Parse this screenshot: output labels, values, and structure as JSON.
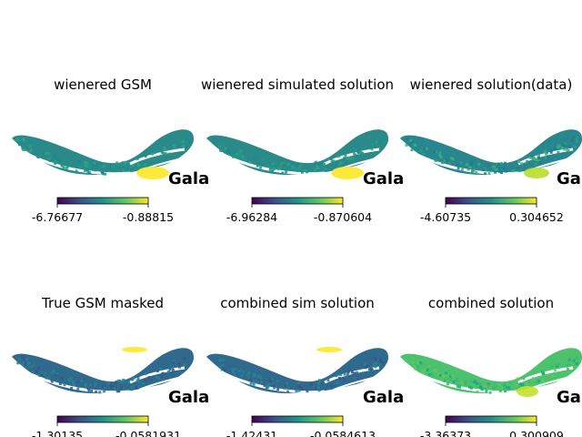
{
  "chart_data": [
    {
      "type": "heatmap",
      "title": "wienered GSM",
      "colorbar": {
        "min": "-6.76677",
        "max": "-0.88815"
      },
      "overlay_label": "Gala",
      "palette": "viridis",
      "pattern": "bright-south"
    },
    {
      "type": "heatmap",
      "title": "wienered simulated solution",
      "colorbar": {
        "min": "-6.96284",
        "max": "-0.870604"
      },
      "overlay_label": "Gala",
      "palette": "viridis",
      "pattern": "bright-south"
    },
    {
      "type": "heatmap",
      "title": "wienered solution(data)",
      "colorbar": {
        "min": "-4.60735",
        "max": "0.304652"
      },
      "overlay_label": "Gala",
      "palette": "viridis",
      "pattern": "noisy-mid"
    },
    {
      "type": "heatmap",
      "title": "True GSM masked",
      "colorbar": {
        "min": "-1.30135",
        "max": "-0.0581931"
      },
      "overlay_label": "Gala",
      "palette": "viridis",
      "pattern": "dark-plane"
    },
    {
      "type": "heatmap",
      "title": "combined sim solution",
      "colorbar": {
        "min": "-1.42431",
        "max": "-0.0584613"
      },
      "overlay_label": "Gala",
      "palette": "viridis",
      "pattern": "dark-plane"
    },
    {
      "type": "heatmap",
      "title": "combined solution",
      "colorbar": {
        "min": "-3.36373",
        "max": "0.300909"
      },
      "overlay_label": "Gala",
      "palette": "viridis",
      "pattern": "green-bright"
    }
  ]
}
